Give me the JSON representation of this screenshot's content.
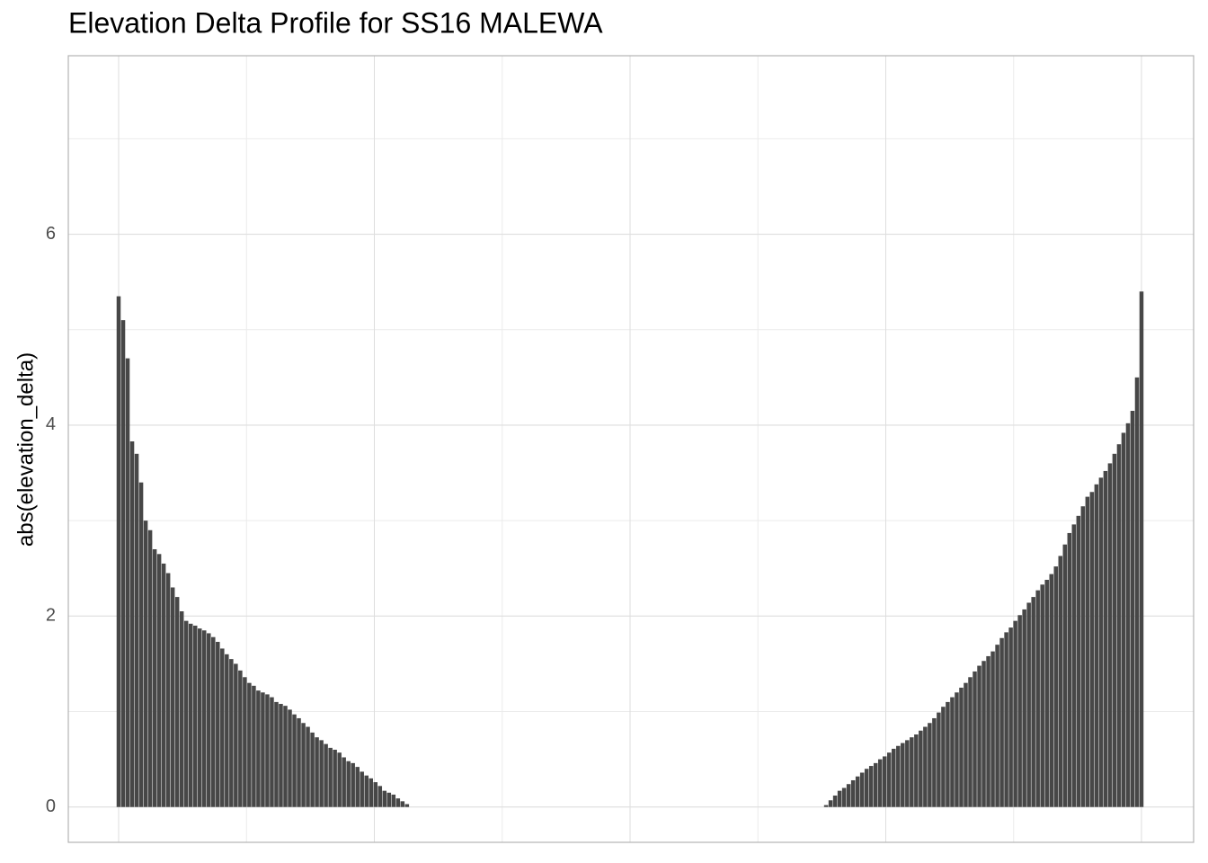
{
  "chart_data": {
    "type": "bar",
    "title": "Elevation Delta Profile for SS16 MALEWA",
    "ylabel": "abs(elevation_delta)",
    "color": "#474747",
    "grid": true,
    "ylim": [
      -0.37,
      7.87
    ],
    "yticks": [
      0,
      2,
      4,
      6
    ],
    "values": [
      5.35,
      5.1,
      4.7,
      3.83,
      3.7,
      3.4,
      3.0,
      2.9,
      2.7,
      2.65,
      2.55,
      2.45,
      2.3,
      2.2,
      2.05,
      1.95,
      1.92,
      1.9,
      1.87,
      1.85,
      1.82,
      1.78,
      1.73,
      1.66,
      1.6,
      1.55,
      1.5,
      1.43,
      1.36,
      1.3,
      1.27,
      1.22,
      1.2,
      1.18,
      1.15,
      1.1,
      1.08,
      1.06,
      1.02,
      0.97,
      0.93,
      0.88,
      0.84,
      0.78,
      0.73,
      0.7,
      0.66,
      0.62,
      0.6,
      0.57,
      0.52,
      0.48,
      0.46,
      0.42,
      0.37,
      0.33,
      0.3,
      0.26,
      0.22,
      0.17,
      0.15,
      0.13,
      0.09,
      0.06,
      0.03,
      0,
      0,
      0,
      0,
      0,
      0,
      0,
      0,
      0,
      0,
      0,
      0,
      0,
      0,
      0,
      0,
      0,
      0,
      0,
      0,
      0,
      0,
      0,
      0,
      0,
      0,
      0,
      0,
      0,
      0,
      0,
      0,
      0,
      0,
      0,
      0,
      0,
      0,
      0,
      0,
      0,
      0,
      0,
      0,
      0,
      0,
      0,
      0,
      0,
      0,
      0,
      0,
      0,
      0,
      0,
      0,
      0,
      0,
      0,
      0,
      0,
      0,
      0,
      0,
      0,
      0,
      0,
      0,
      0,
      0,
      0,
      0,
      0,
      0,
      0,
      0,
      0,
      0,
      0,
      0,
      0,
      0,
      0,
      0,
      0,
      0,
      0,
      0,
      0,
      0,
      0,
      0,
      0.02,
      0.07,
      0.12,
      0.17,
      0.2,
      0.24,
      0.28,
      0.32,
      0.36,
      0.4,
      0.43,
      0.46,
      0.5,
      0.53,
      0.57,
      0.61,
      0.64,
      0.67,
      0.7,
      0.73,
      0.76,
      0.8,
      0.84,
      0.88,
      0.93,
      0.99,
      1.05,
      1.1,
      1.15,
      1.2,
      1.25,
      1.3,
      1.36,
      1.42,
      1.48,
      1.53,
      1.58,
      1.63,
      1.7,
      1.77,
      1.83,
      1.88,
      1.95,
      2.01,
      2.07,
      2.14,
      2.2,
      2.27,
      2.33,
      2.38,
      2.44,
      2.52,
      2.63,
      2.75,
      2.87,
      2.96,
      3.05,
      3.15,
      3.25,
      3.3,
      3.38,
      3.45,
      3.52,
      3.6,
      3.7,
      3.8,
      3.92,
      4.02,
      4.15,
      4.5,
      5.4
    ]
  }
}
